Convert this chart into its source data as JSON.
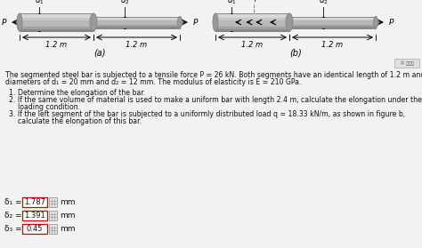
{
  "bg_color": "#f2f2f2",
  "bar_color_light": "#c8c8c8",
  "bar_color_mid": "#b0b0b0",
  "bar_color_dark": "#888888",
  "bar_color_edge": "#777777",
  "problem_line1": "The segmented steel bar is subjected to a tensile force P = 26 kN. Both segments have an identical length of 1.2 m and",
  "problem_line2": "diameters of d₁ = 20 mm and d₂ = 12 mm. The modulus of elasticity is E = 210 GPa.",
  "item1": "1. Determine the elongation of the bar.",
  "item2a": "2. If the same volume of material is used to make a uniform bar with length 2.4 m, calculate the elongation under the same",
  "item2b": "    loading condition.",
  "item3a": "3. If the left segment of the bar is subjected to a uniformly distributed load q = 18.33 kN/m, as shown in figure b,",
  "item3b": "    calculate the elongation of this bar.",
  "delta1_label": "δ₁ =",
  "delta1_value": "1.787",
  "delta2_label": "δ₂ =",
  "delta2_value": "1.391",
  "delta3_label": "δ₃ =",
  "delta3_value": "0.45",
  "unit": "mm",
  "box_border": "#cc0000",
  "box_fill": "#ffffff",
  "label_a": "(a)",
  "label_b": "(b)"
}
